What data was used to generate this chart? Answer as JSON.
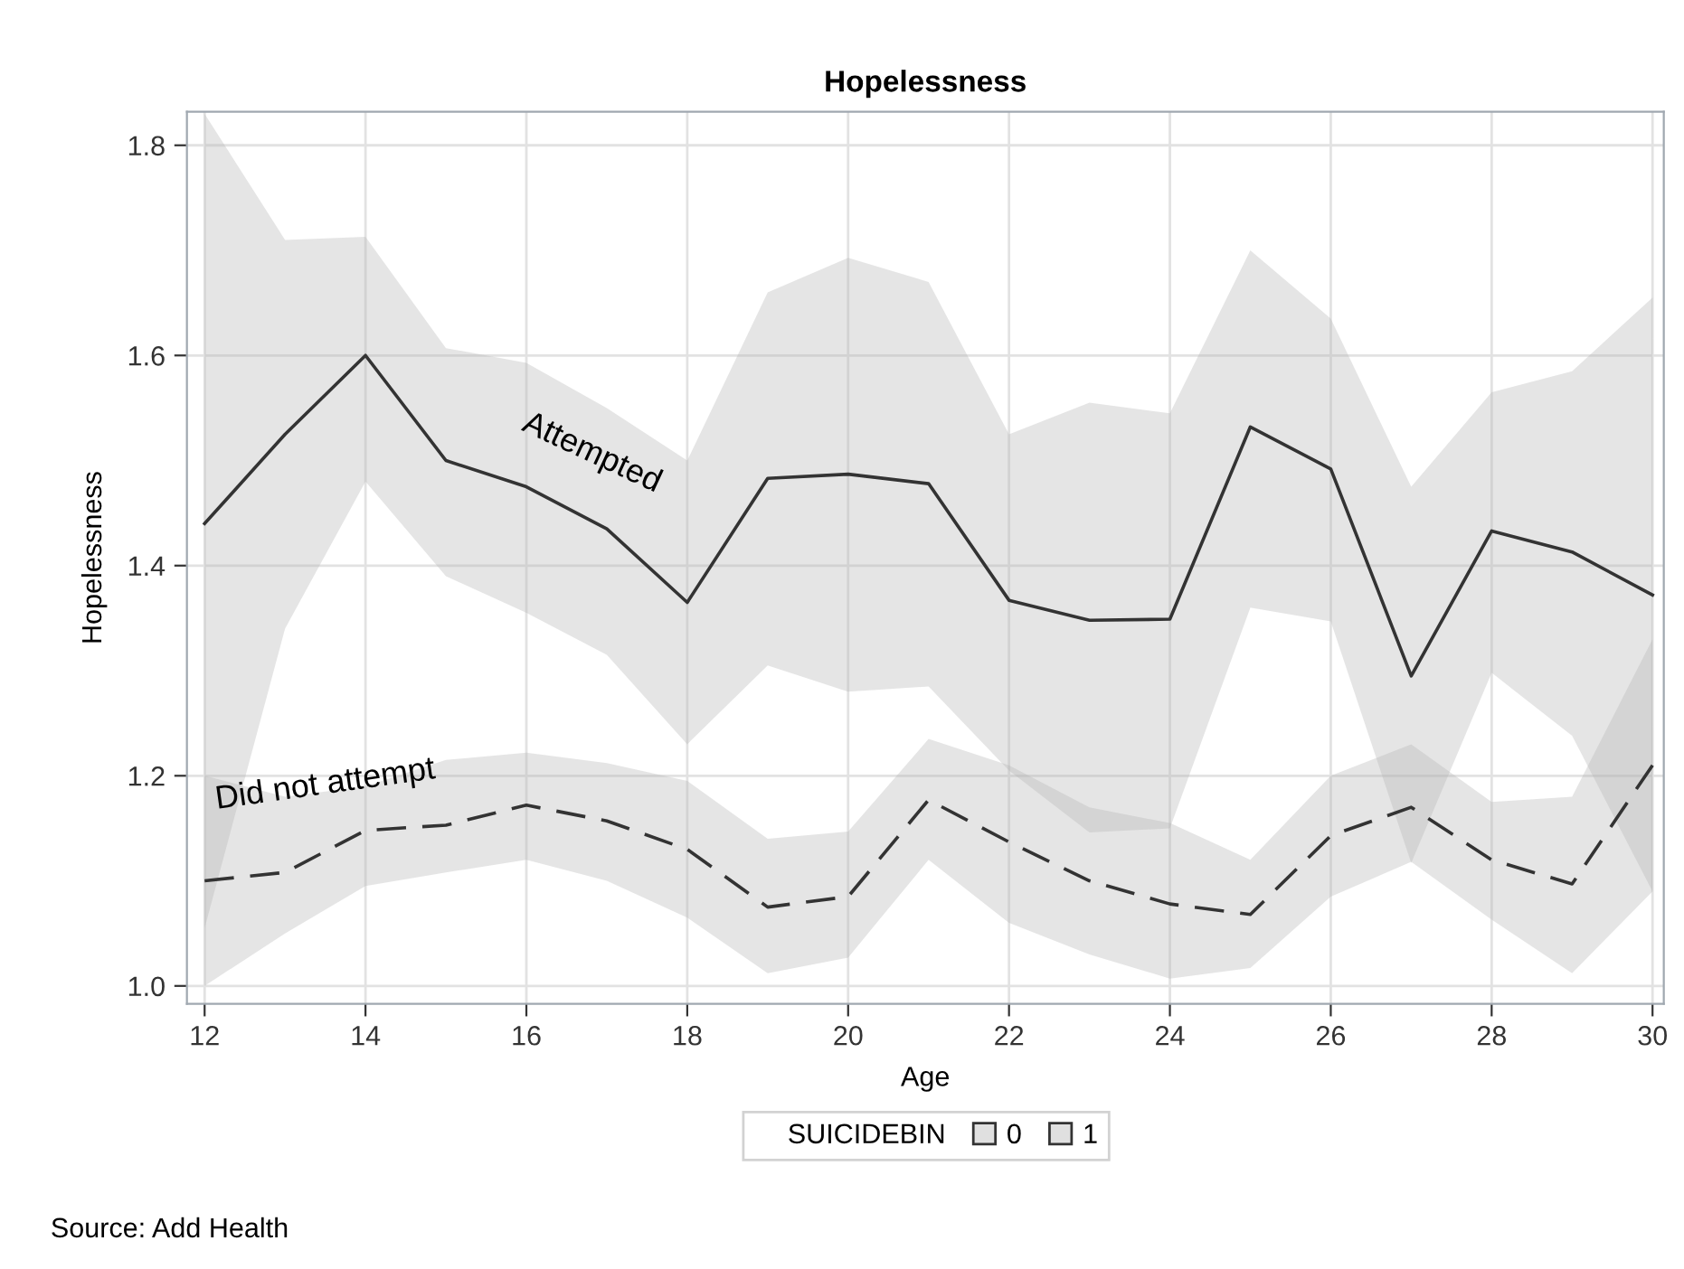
{
  "chart_data": {
    "type": "line",
    "title": "Hopelessness",
    "xlabel": "Age",
    "ylabel": "Hopelessness",
    "legend_title": "SUICIDEBIN",
    "x": [
      12,
      13,
      14,
      15,
      16,
      17,
      18,
      19,
      20,
      21,
      22,
      23,
      24,
      25,
      26,
      27,
      28,
      29,
      30
    ],
    "series": [
      {
        "name": "0",
        "color": "#333333",
        "line_style": "dashed",
        "values": [
          1.1,
          1.108,
          1.148,
          1.153,
          1.172,
          1.157,
          1.13,
          1.075,
          1.085,
          1.177,
          1.137,
          1.1,
          1.078,
          1.068,
          1.143,
          1.17,
          1.12,
          1.097,
          1.21
        ],
        "lower": [
          1.0,
          1.05,
          1.095,
          1.108,
          1.12,
          1.1,
          1.065,
          1.012,
          1.027,
          1.12,
          1.06,
          1.03,
          1.007,
          1.017,
          1.085,
          1.118,
          1.063,
          1.012,
          1.09
        ],
        "upper": [
          1.2,
          1.18,
          1.19,
          1.215,
          1.222,
          1.212,
          1.195,
          1.14,
          1.147,
          1.235,
          1.21,
          1.17,
          1.155,
          1.12,
          1.2,
          1.23,
          1.175,
          1.18,
          1.33
        ]
      },
      {
        "name": "1",
        "color": "#333333",
        "line_style": "solid",
        "values": [
          1.44,
          1.525,
          1.6,
          1.5,
          1.475,
          1.435,
          1.365,
          1.483,
          1.487,
          1.478,
          1.367,
          1.348,
          1.349,
          1.532,
          1.492,
          1.295,
          1.433,
          1.413,
          1.372
        ],
        "lower": [
          1.055,
          1.34,
          1.48,
          1.39,
          1.355,
          1.315,
          1.23,
          1.305,
          1.28,
          1.285,
          1.205,
          1.146,
          1.15,
          1.36,
          1.347,
          1.117,
          1.298,
          1.238,
          1.09
        ],
        "upper": [
          1.83,
          1.71,
          1.713,
          1.607,
          1.593,
          1.55,
          1.5,
          1.66,
          1.693,
          1.67,
          1.525,
          1.555,
          1.545,
          1.7,
          1.635,
          1.475,
          1.565,
          1.585,
          1.655
        ]
      }
    ],
    "xlim": [
      11.78,
      30.14
    ],
    "ylim": [
      0.983,
      1.832
    ],
    "xticks": [
      12,
      14,
      16,
      18,
      20,
      22,
      24,
      26,
      28,
      30
    ],
    "yticks": [
      {
        "value": 1.0,
        "label": "1.0"
      },
      1.2,
      1.4,
      1.6,
      1.8
    ],
    "grid": true,
    "legend": "bottom",
    "marker": "none",
    "annotations": [
      {
        "text": "Attempted",
        "x": 17,
        "y": 1.435
      },
      {
        "text": "Did not attempt",
        "x": 14,
        "y": 1.148
      },
      "Source: Add Health"
    ]
  }
}
